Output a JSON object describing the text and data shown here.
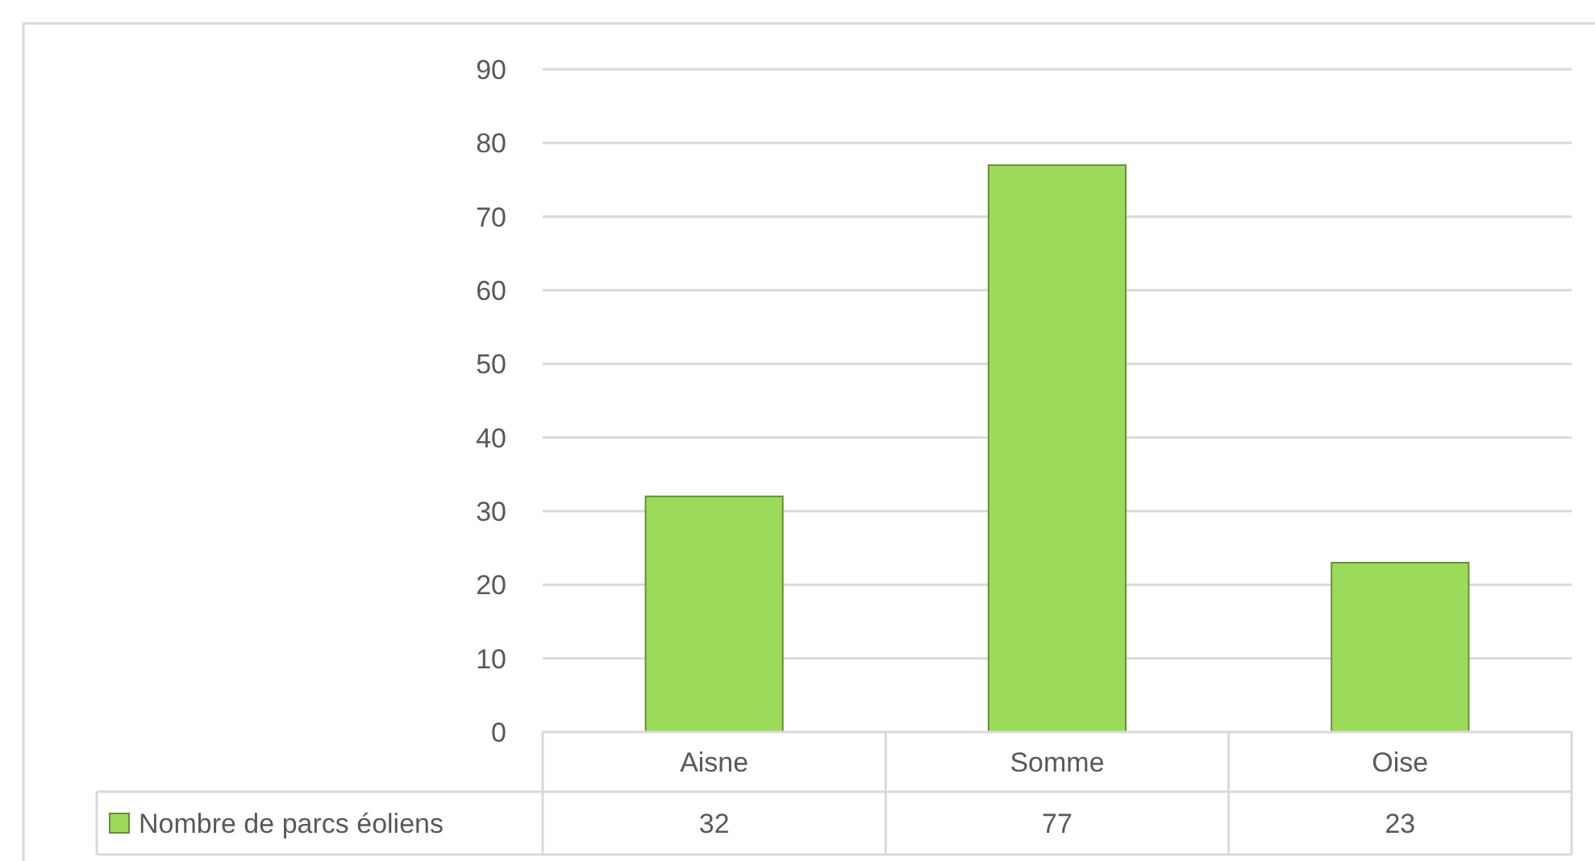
{
  "chart_data": {
    "type": "bar",
    "categories": [
      "Aisne",
      "Somme",
      "Oise"
    ],
    "series": [
      {
        "name": "Nombre de parcs éoliens",
        "color": "#9bdb59",
        "values": [
          32,
          77,
          23
        ]
      }
    ],
    "ylim": [
      0,
      90
    ],
    "yticks": [
      0,
      10,
      20,
      30,
      40,
      50,
      60,
      70,
      80,
      90
    ],
    "grid": "y",
    "legend": "bottom",
    "data_labels": true
  }
}
